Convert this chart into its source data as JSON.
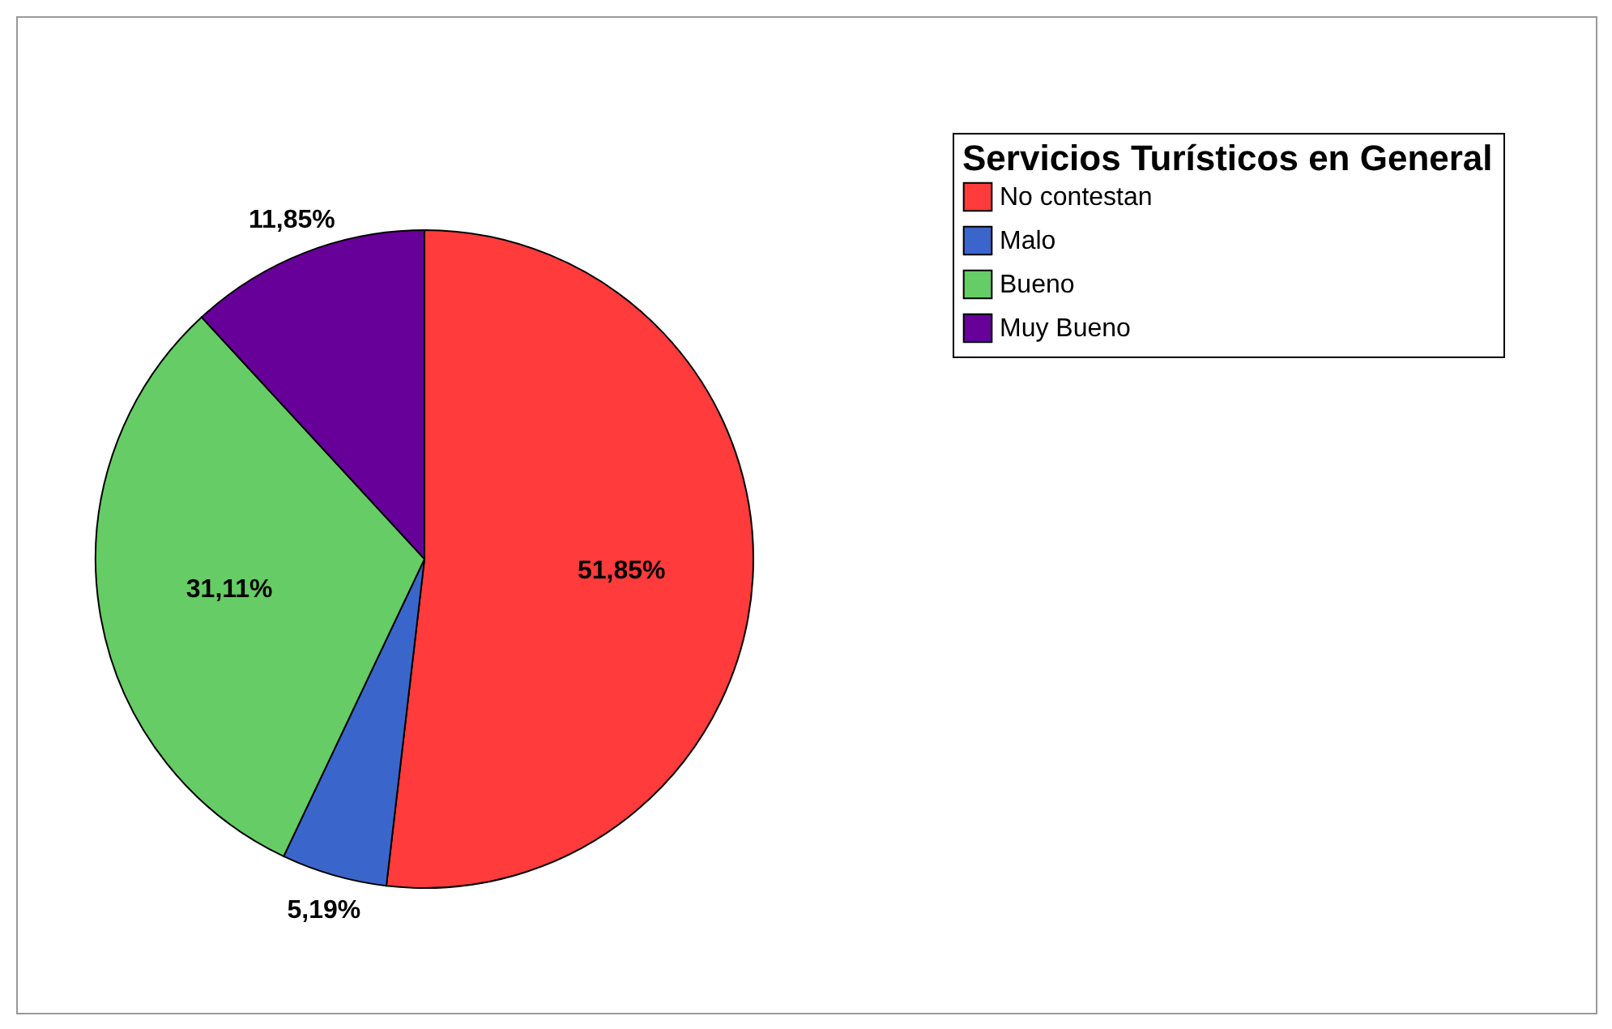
{
  "chart_data": {
    "type": "pie",
    "legend_title": "Servicios Turísticos en General",
    "categories": [
      "No contestan",
      "Malo",
      "Bueno",
      "Muy Bueno"
    ],
    "values": [
      51.85,
      5.19,
      31.11,
      11.85
    ],
    "colors": [
      "#ff3b3b",
      "#3a66cc",
      "#66cc66",
      "#660099"
    ],
    "value_labels": [
      "51,85%",
      "5,19%",
      "31,11%",
      "11,85%"
    ],
    "legend": "top right"
  }
}
